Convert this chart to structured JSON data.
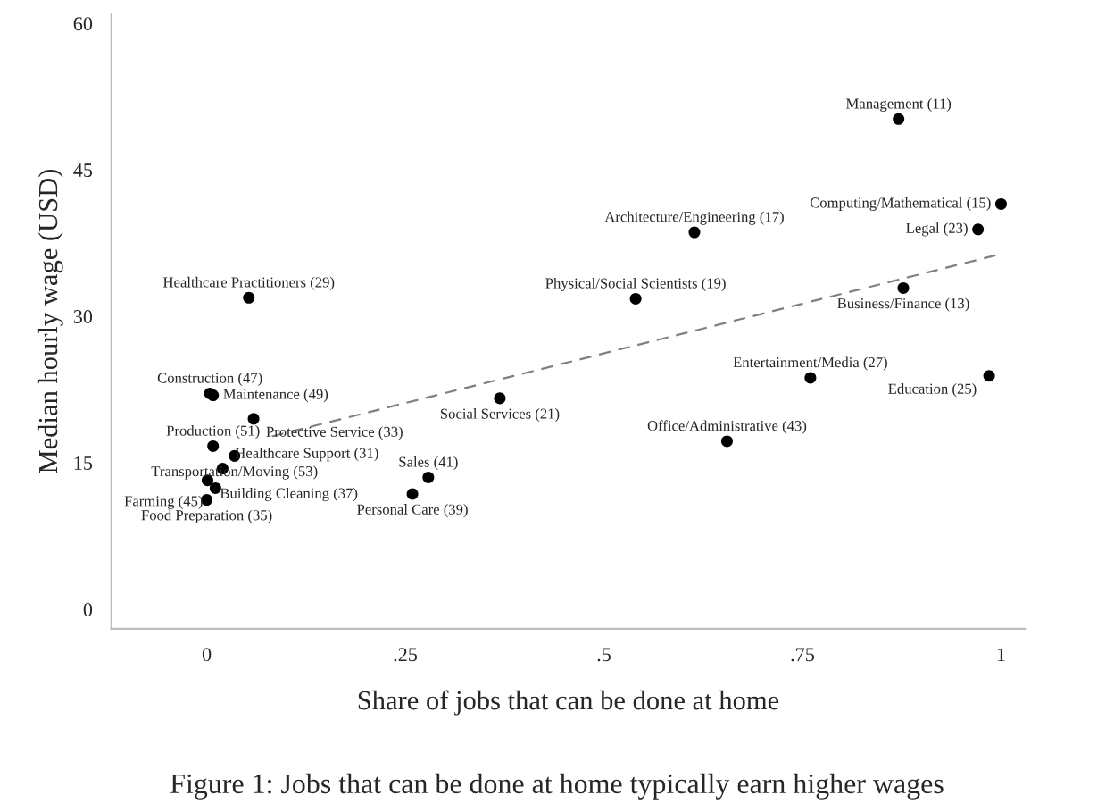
{
  "chart_data": {
    "type": "scatter",
    "xlabel": "Share of jobs that can be done at home",
    "ylabel": "Median hourly wage (USD)",
    "xlim": [
      -0.12,
      1.03
    ],
    "ylim": [
      -2,
      61
    ],
    "xticks": [
      0,
      {
        "value": 0.25,
        "label": ".25"
      },
      {
        "value": 0.5,
        "label": ".5"
      },
      {
        "value": 0.75,
        "label": ".75"
      },
      1
    ],
    "yticks": [
      0,
      15,
      30,
      45,
      60
    ],
    "grid": false,
    "marker": "circle",
    "series": [
      {
        "type": "scatter",
        "color": "#000000",
        "x": [
          0.871,
          1.0,
          0.971,
          0.614,
          0.053,
          0.54,
          0.877,
          0.76,
          0.985,
          0.369,
          0.655,
          0.279,
          0.259,
          0.004,
          0.008,
          0.059,
          0.008,
          0.035,
          0.02,
          0.001,
          0.011,
          0.0
        ],
        "values": [
          50.2,
          41.5,
          38.9,
          38.6,
          31.9,
          31.8,
          32.9,
          23.7,
          23.9,
          21.6,
          17.2,
          13.5,
          11.8,
          22.1,
          21.9,
          19.5,
          16.7,
          15.7,
          14.4,
          13.2,
          12.4,
          11.2
        ]
      },
      {
        "type": "line",
        "color": "#808080",
        "line_style": "dashed",
        "marker": "none",
        "x": [
          0.082,
          0.996
        ],
        "values": [
          17.7,
          36.3
        ]
      }
    ],
    "annotations": [
      {
        "text": "Management (11)",
        "x": 0.871,
        "y": 50.2
      },
      {
        "text": "Computing/Mathematical (15)",
        "x": 1.0,
        "y": 41.5
      },
      {
        "text": "Legal (23)",
        "x": 0.971,
        "y": 38.9
      },
      {
        "text": "Architecture/Engineering (17)",
        "x": 0.614,
        "y": 38.6
      },
      {
        "text": "Healthcare Practitioners (29)",
        "x": 0.053,
        "y": 31.9
      },
      {
        "text": "Physical/Social Scientists (19)",
        "x": 0.54,
        "y": 31.8
      },
      {
        "text": "Business/Finance (13)",
        "x": 0.877,
        "y": 32.9
      },
      {
        "text": "Entertainment/Media (27)",
        "x": 0.76,
        "y": 23.7
      },
      {
        "text": "Education (25)",
        "x": 0.985,
        "y": 23.9
      },
      {
        "text": "Social Services (21)",
        "x": 0.369,
        "y": 21.6
      },
      {
        "text": "Office/Administrative (43)",
        "x": 0.655,
        "y": 17.2
      },
      {
        "text": "Sales (41)",
        "x": 0.279,
        "y": 13.5
      },
      {
        "text": "Personal Care (39)",
        "x": 0.259,
        "y": 11.8
      },
      {
        "text": "Construction (47)",
        "x": 0.004,
        "y": 22.1
      },
      {
        "text": "Maintenance (49)",
        "x": 0.008,
        "y": 21.9
      },
      {
        "text": "Protective Service (33)",
        "x": 0.059,
        "y": 19.5
      },
      {
        "text": "Production (51)",
        "x": 0.008,
        "y": 16.7
      },
      {
        "text": "Transportation/Moving (53)",
        "x": 0.035,
        "y": 15.7
      },
      {
        "text": "Healthcare Support (31)",
        "x": 0.02,
        "y": 14.4
      },
      {
        "text": "Building Cleaning (37)",
        "x": 0.001,
        "y": 13.2
      },
      {
        "text": "Farming (45)",
        "x": 0.011,
        "y": 12.4
      },
      {
        "text": "Food Preparation (35)",
        "x": 0.0,
        "y": 11.2
      },
      "Figure 1: Jobs that can be done at home typically earn higher wages"
    ]
  }
}
